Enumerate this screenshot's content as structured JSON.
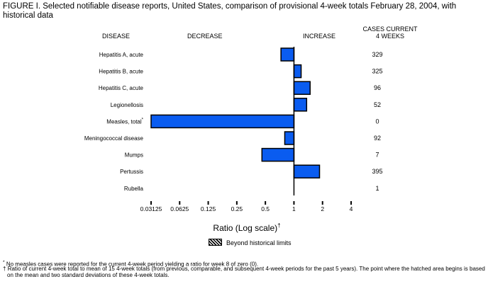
{
  "chart_data": {
    "type": "bar",
    "orientation": "horizontal",
    "title": "FIGURE I. Selected notifiable disease reports, United States, comparison of provisional 4-week totals February 28, 2004, with historical data",
    "headers": {
      "disease": "DISEASE",
      "decrease": "DECREASE",
      "increase": "INCREASE",
      "cases": "CASES CURRENT",
      "cases2": "4 WEEKS"
    },
    "categories": [
      "Hepatitis A, acute",
      "Hepatitis B, acute",
      "Hepatitis C, acute",
      "Legionellosis",
      "Measles, total",
      "Meningococcal disease",
      "Mumps",
      "Pertussis",
      "Rubella"
    ],
    "category_marks": [
      "",
      "",
      "",
      "",
      "*",
      "",
      "",
      "",
      ""
    ],
    "values": [
      0.73,
      1.19,
      1.48,
      1.36,
      0.03125,
      0.8,
      0.46,
      1.86,
      1.0
    ],
    "cases": [
      "329",
      "325",
      "96",
      "52",
      "0",
      "92",
      "7",
      "395",
      "1"
    ],
    "xlabel": "Ratio (Log scale)",
    "xlabel_mark": "†",
    "xscale": "log2",
    "xlim": [
      0.03125,
      4
    ],
    "xticks": [
      "0.03125",
      "0.0625",
      "0.125",
      "0.25",
      "0.5",
      "1",
      "2",
      "4"
    ],
    "bar_color": "#0a5cf0",
    "legend": "Beyond historical limits",
    "footnotes": [
      {
        "mark": "*",
        "text": "No measles cases were reported for the current 4-week period yielding a ratio for week 8 of zero (0)."
      },
      {
        "mark": "†",
        "text": "Ratio of current 4-week total to mean of 15 4-week totals (from previous, comparable, and subsequent 4-week periods for the past 5 years). The point where the hatched area begins is based on the mean and two standard deviations of these 4-week totals."
      }
    ]
  }
}
